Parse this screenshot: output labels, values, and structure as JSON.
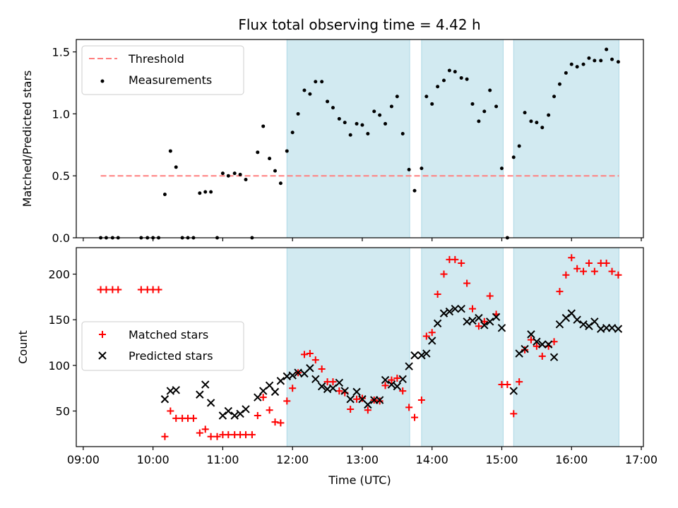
{
  "title": "Flux total observing time = 4.42 h",
  "colors": {
    "threshold": "#ff7f7f",
    "measurement": "#000000",
    "matched": "#ff0000",
    "predicted": "#000000",
    "band_fill": "#add8e6"
  },
  "chart_data": [
    {
      "type": "scatter",
      "ylabel": "Matched/Predicted stars",
      "xlabel": "",
      "xlim": [
        8.9,
        17.03
      ],
      "ylim": [
        0,
        1.6
      ],
      "yticks": [
        0.0,
        0.5,
        1.0,
        1.5
      ],
      "ytick_labels": [
        "0.0",
        "0.5",
        "1.0",
        "1.5"
      ],
      "xticks": [
        9,
        10,
        11,
        12,
        13,
        14,
        15,
        16,
        17
      ],
      "grid": false,
      "legend": {
        "position": "upper-left",
        "entries": [
          {
            "label": "Threshold",
            "marker": "dashed-line"
          },
          {
            "label": "Measurements",
            "marker": "dot"
          }
        ]
      },
      "shaded_intervals": [
        [
          11.92,
          13.68
        ],
        [
          13.85,
          15.02
        ],
        [
          15.17,
          16.68
        ]
      ],
      "threshold": {
        "y": 0.5,
        "x_start": 9.25,
        "x_end": 16.68
      },
      "series": [
        {
          "name": "Measurements",
          "x": [
            9.25,
            9.33,
            9.42,
            9.5,
            9.83,
            9.92,
            10.0,
            10.08,
            10.17,
            10.25,
            10.33,
            10.42,
            10.5,
            10.58,
            10.67,
            10.75,
            10.83,
            10.92,
            11.0,
            11.08,
            11.17,
            11.25,
            11.33,
            11.42,
            11.5,
            11.58,
            11.67,
            11.75,
            11.83,
            11.92,
            12.0,
            12.08,
            12.17,
            12.25,
            12.33,
            12.42,
            12.5,
            12.58,
            12.67,
            12.75,
            12.83,
            12.92,
            13.0,
            13.08,
            13.17,
            13.25,
            13.33,
            13.42,
            13.5,
            13.58,
            13.67,
            13.75,
            13.85,
            13.92,
            14.0,
            14.08,
            14.17,
            14.25,
            14.33,
            14.42,
            14.5,
            14.58,
            14.67,
            14.75,
            14.83,
            14.92,
            15.0,
            15.08,
            15.17,
            15.25,
            15.33,
            15.42,
            15.5,
            15.58,
            15.67,
            15.75,
            15.83,
            15.92,
            16.0,
            16.08,
            16.17,
            16.25,
            16.33,
            16.42,
            16.5,
            16.58,
            16.67
          ],
          "y": [
            0.0,
            0.0,
            0.0,
            0.0,
            0.0,
            0.0,
            0.0,
            0.0,
            0.35,
            0.7,
            0.57,
            0.0,
            0.0,
            0.0,
            0.36,
            0.37,
            0.37,
            0.0,
            0.52,
            0.5,
            0.52,
            0.51,
            0.47,
            0.0,
            0.69,
            0.9,
            0.64,
            0.54,
            0.44,
            0.7,
            0.85,
            1.0,
            1.19,
            1.16,
            1.26,
            1.26,
            1.1,
            1.05,
            0.96,
            0.93,
            0.83,
            0.92,
            0.91,
            0.84,
            1.02,
            0.99,
            0.92,
            1.06,
            1.14,
            0.84,
            0.55,
            0.38,
            0.56,
            1.14,
            1.08,
            1.22,
            1.27,
            1.35,
            1.34,
            1.29,
            1.28,
            1.08,
            0.94,
            1.02,
            1.19,
            1.06,
            0.56,
            0.0,
            0.65,
            0.74,
            1.01,
            0.94,
            0.93,
            0.89,
            0.99,
            1.14,
            1.24,
            1.33,
            1.4,
            1.38,
            1.4,
            1.45,
            1.43,
            1.43,
            1.52,
            1.44,
            1.42
          ]
        }
      ]
    },
    {
      "type": "scatter",
      "ylabel": "Count",
      "xlabel": "Time (UTC)",
      "xlim": [
        8.9,
        17.03
      ],
      "ylim": [
        11,
        229
      ],
      "yticks": [
        50,
        100,
        150,
        200
      ],
      "ytick_labels": [
        "50",
        "100",
        "150",
        "200"
      ],
      "xticks": [
        9,
        10,
        11,
        12,
        13,
        14,
        15,
        16,
        17
      ],
      "xtick_labels": [
        "09:00",
        "10:00",
        "11:00",
        "12:00",
        "13:00",
        "14:00",
        "15:00",
        "16:00",
        "17:00"
      ],
      "grid": false,
      "legend": {
        "position": "center-left",
        "entries": [
          {
            "label": "Matched stars",
            "marker": "plus"
          },
          {
            "label": "Predicted stars",
            "marker": "x"
          }
        ]
      },
      "shaded_intervals": [
        [
          11.92,
          13.68
        ],
        [
          13.85,
          15.02
        ],
        [
          15.17,
          16.68
        ]
      ],
      "series": [
        {
          "name": "Matched stars",
          "x": [
            9.25,
            9.33,
            9.42,
            9.5,
            9.83,
            9.92,
            10.0,
            10.08,
            10.17,
            10.25,
            10.33,
            10.42,
            10.5,
            10.58,
            10.67,
            10.75,
            10.83,
            10.92,
            11.0,
            11.08,
            11.17,
            11.25,
            11.33,
            11.42,
            11.5,
            11.58,
            11.67,
            11.75,
            11.83,
            11.92,
            12.0,
            12.08,
            12.17,
            12.25,
            12.33,
            12.42,
            12.5,
            12.58,
            12.67,
            12.75,
            12.83,
            12.92,
            13.0,
            13.08,
            13.17,
            13.25,
            13.33,
            13.42,
            13.5,
            13.58,
            13.67,
            13.75,
            13.85,
            13.92,
            14.0,
            14.08,
            14.17,
            14.25,
            14.33,
            14.42,
            14.5,
            14.58,
            14.67,
            14.75,
            14.83,
            14.92,
            15.0,
            15.08,
            15.17,
            15.25,
            15.33,
            15.42,
            15.5,
            15.58,
            15.67,
            15.75,
            15.83,
            15.92,
            16.0,
            16.08,
            16.17,
            16.25,
            16.33,
            16.42,
            16.5,
            16.58,
            16.67
          ],
          "y": [
            183,
            183,
            183,
            183,
            183,
            183,
            183,
            183,
            22,
            50,
            42,
            42,
            42,
            42,
            26,
            30,
            22,
            22,
            24,
            24,
            24,
            24,
            24,
            24,
            45,
            65,
            51,
            38,
            37,
            61,
            75,
            92,
            112,
            113,
            106,
            96,
            82,
            82,
            72,
            70,
            52,
            63,
            64,
            51,
            62,
            61,
            78,
            84,
            86,
            72,
            54,
            43,
            62,
            132,
            136,
            178,
            200,
            216,
            216,
            212,
            190,
            162,
            143,
            148,
            176,
            156,
            79,
            79,
            47,
            82,
            117,
            128,
            121,
            110,
            121,
            126,
            181,
            199,
            218,
            206,
            203,
            212,
            203,
            212,
            212,
            203,
            199
          ]
        },
        {
          "name": "Predicted stars",
          "x": [
            10.17,
            10.25,
            10.33,
            10.67,
            10.75,
            10.83,
            11.0,
            11.08,
            11.17,
            11.25,
            11.33,
            11.5,
            11.58,
            11.67,
            11.75,
            11.83,
            11.92,
            12.0,
            12.08,
            12.17,
            12.25,
            12.33,
            12.42,
            12.5,
            12.58,
            12.67,
            12.75,
            12.83,
            12.92,
            13.0,
            13.08,
            13.17,
            13.25,
            13.33,
            13.42,
            13.5,
            13.58,
            13.67,
            13.75,
            13.85,
            13.92,
            14.0,
            14.08,
            14.17,
            14.25,
            14.33,
            14.42,
            14.5,
            14.58,
            14.67,
            14.75,
            14.83,
            14.92,
            15.0,
            15.17,
            15.25,
            15.33,
            15.42,
            15.5,
            15.58,
            15.67,
            15.75,
            15.83,
            15.92,
            16.0,
            16.08,
            16.17,
            16.25,
            16.33,
            16.42,
            16.5,
            16.58,
            16.67
          ],
          "y": [
            63,
            72,
            73,
            68,
            79,
            59,
            45,
            50,
            45,
            47,
            52,
            65,
            72,
            78,
            71,
            83,
            88,
            89,
            92,
            91,
            97,
            85,
            77,
            74,
            75,
            81,
            72,
            63,
            71,
            63,
            57,
            62,
            62,
            84,
            79,
            77,
            85,
            99,
            111,
            111,
            113,
            127,
            146,
            157,
            159,
            162,
            162,
            148,
            149,
            152,
            144,
            148,
            153,
            141,
            72,
            113,
            118,
            134,
            126,
            123,
            123,
            109,
            145,
            152,
            157,
            150,
            145,
            143,
            148,
            140,
            141,
            141,
            140
          ]
        }
      ]
    }
  ]
}
